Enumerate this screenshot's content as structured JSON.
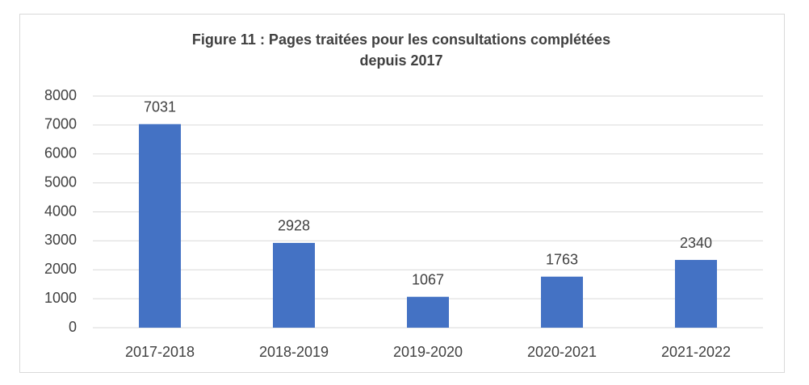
{
  "chart_data": {
    "type": "bar",
    "title": [
      "Figure 11 : Pages traitées pour les consultations complétées",
      "depuis 2017"
    ],
    "categories": [
      "2017-2018",
      "2018-2019",
      "2019-2020",
      "2020-2021",
      "2021-2022"
    ],
    "values": [
      7031,
      2928,
      1067,
      1763,
      2340
    ],
    "color": "#4472c4",
    "ylim": [
      0,
      8000
    ],
    "yticks": [
      0,
      1000,
      2000,
      3000,
      4000,
      5000,
      6000,
      7000,
      8000
    ],
    "grid": true,
    "data_labels": true
  }
}
